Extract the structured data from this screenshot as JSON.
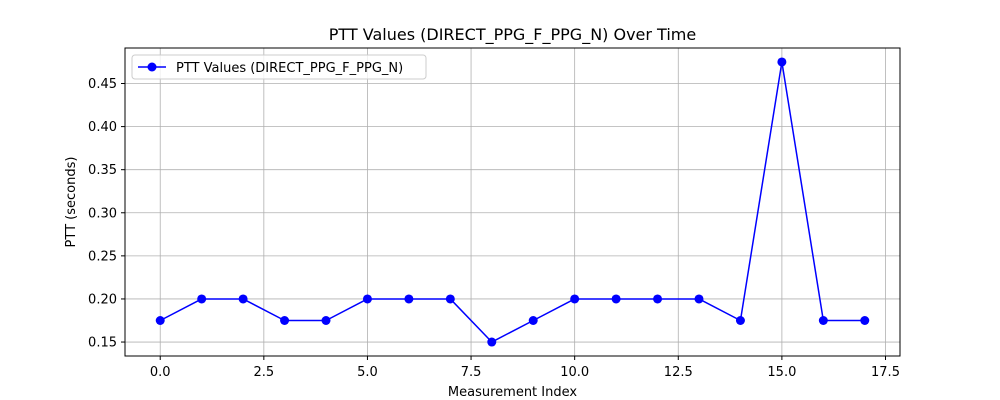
{
  "chart_data": {
    "type": "line",
    "title": "PTT Values (DIRECT_PPG_F_PPG_N) Over Time",
    "xlabel": "Measurement Index",
    "ylabel": "PTT (seconds)",
    "xlim": [
      -0.85,
      17.85
    ],
    "ylim": [
      0.1338,
      0.4912
    ],
    "xticks": [
      0.0,
      2.5,
      5.0,
      7.5,
      10.0,
      12.5,
      15.0,
      17.5
    ],
    "xtick_labels": [
      "0.0",
      "2.5",
      "5.0",
      "7.5",
      "10.0",
      "12.5",
      "15.0",
      "17.5"
    ],
    "yticks": [
      0.15,
      0.2,
      0.25,
      0.3,
      0.35,
      0.4,
      0.45
    ],
    "ytick_labels": [
      "0.15",
      "0.20",
      "0.25",
      "0.30",
      "0.35",
      "0.40",
      "0.45"
    ],
    "grid": true,
    "legend_position": "top-left",
    "series": [
      {
        "name": "PTT Values (DIRECT_PPG_F_PPG_N)",
        "color": "#0000ff",
        "marker": "circle",
        "x": [
          0,
          1,
          2,
          3,
          4,
          5,
          6,
          7,
          8,
          9,
          10,
          11,
          12,
          13,
          14,
          15,
          16,
          17
        ],
        "y": [
          0.175,
          0.2,
          0.2,
          0.175,
          0.175,
          0.2,
          0.2,
          0.2,
          0.15,
          0.175,
          0.2,
          0.2,
          0.2,
          0.2,
          0.175,
          0.475,
          0.175,
          0.175
        ]
      }
    ]
  }
}
